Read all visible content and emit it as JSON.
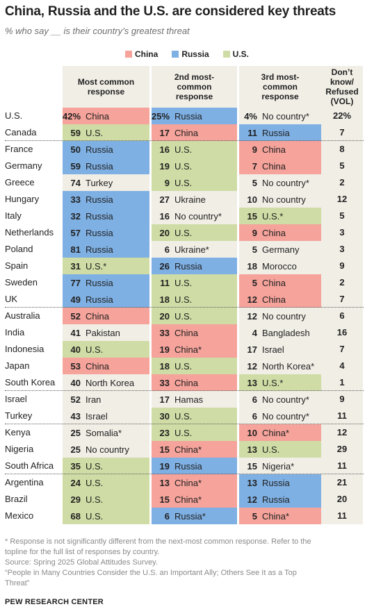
{
  "title": "China, Russia and the U.S. are considered key threats",
  "subtitle": "% who say __ is their country’s greatest threat",
  "colors": {
    "China": "#f5a39b",
    "Russia": "#7fb0e3",
    "U.S.": "#cfdca5",
    "Other": "#efece2"
  },
  "legend": [
    {
      "label": "China",
      "key": "China"
    },
    {
      "label": "Russia",
      "key": "Russia"
    },
    {
      "label": "U.S.",
      "key": "U.S."
    }
  ],
  "chart_data": {
    "type": "table",
    "columns": [
      "Most common response",
      "2nd most-common response",
      "3rd most-common response",
      "Don’t know/ Refused (VOL)"
    ],
    "rows": [
      {
        "country": "U.S.",
        "group": 1,
        "c1": {
          "v": "42%",
          "t": "China",
          "k": "China"
        },
        "c2": {
          "v": "25%",
          "t": "Russia",
          "k": "Russia"
        },
        "c3": {
          "v": "4%",
          "t": "No country*",
          "k": "Other"
        },
        "dk": "22%"
      },
      {
        "country": "Canada",
        "group": 1,
        "c1": {
          "v": "59",
          "t": "U.S.",
          "k": "U.S."
        },
        "c2": {
          "v": "17",
          "t": "China",
          "k": "China"
        },
        "c3": {
          "v": "11",
          "t": "Russia",
          "k": "Russia"
        },
        "dk": "7"
      },
      {
        "country": "France",
        "group": 2,
        "c1": {
          "v": "50",
          "t": "Russia",
          "k": "Russia"
        },
        "c2": {
          "v": "16",
          "t": "U.S.",
          "k": "U.S."
        },
        "c3": {
          "v": "9",
          "t": "China",
          "k": "China"
        },
        "dk": "8"
      },
      {
        "country": "Germany",
        "group": 2,
        "c1": {
          "v": "59",
          "t": "Russia",
          "k": "Russia"
        },
        "c2": {
          "v": "19",
          "t": "U.S.",
          "k": "U.S."
        },
        "c3": {
          "v": "7",
          "t": "China",
          "k": "China"
        },
        "dk": "5"
      },
      {
        "country": "Greece",
        "group": 2,
        "c1": {
          "v": "74",
          "t": "Turkey",
          "k": "Other"
        },
        "c2": {
          "v": "9",
          "t": "U.S.",
          "k": "U.S."
        },
        "c3": {
          "v": "5",
          "t": "No country*",
          "k": "Other"
        },
        "dk": "2"
      },
      {
        "country": "Hungary",
        "group": 2,
        "c1": {
          "v": "33",
          "t": "Russia",
          "k": "Russia"
        },
        "c2": {
          "v": "27",
          "t": "Ukraine",
          "k": "Other"
        },
        "c3": {
          "v": "10",
          "t": "No country",
          "k": "Other"
        },
        "dk": "12"
      },
      {
        "country": "Italy",
        "group": 2,
        "c1": {
          "v": "32",
          "t": "Russia",
          "k": "Russia"
        },
        "c2": {
          "v": "16",
          "t": "No country*",
          "k": "Other"
        },
        "c3": {
          "v": "15",
          "t": "U.S.*",
          "k": "U.S."
        },
        "dk": "5"
      },
      {
        "country": "Netherlands",
        "group": 2,
        "c1": {
          "v": "57",
          "t": "Russia",
          "k": "Russia"
        },
        "c2": {
          "v": "20",
          "t": "U.S.",
          "k": "U.S."
        },
        "c3": {
          "v": "9",
          "t": "China",
          "k": "China"
        },
        "dk": "3"
      },
      {
        "country": "Poland",
        "group": 2,
        "c1": {
          "v": "81",
          "t": "Russia",
          "k": "Russia"
        },
        "c2": {
          "v": "6",
          "t": "Ukraine*",
          "k": "Other"
        },
        "c3": {
          "v": "5",
          "t": "Germany",
          "k": "Other"
        },
        "dk": "3"
      },
      {
        "country": "Spain",
        "group": 2,
        "c1": {
          "v": "31",
          "t": "U.S.*",
          "k": "U.S."
        },
        "c2": {
          "v": "26",
          "t": "Russia",
          "k": "Russia"
        },
        "c3": {
          "v": "18",
          "t": "Morocco",
          "k": "Other"
        },
        "dk": "9"
      },
      {
        "country": "Sweden",
        "group": 2,
        "c1": {
          "v": "77",
          "t": "Russia",
          "k": "Russia"
        },
        "c2": {
          "v": "11",
          "t": "U.S.",
          "k": "U.S."
        },
        "c3": {
          "v": "5",
          "t": "China",
          "k": "China"
        },
        "dk": "2"
      },
      {
        "country": "UK",
        "group": 2,
        "c1": {
          "v": "49",
          "t": "Russia",
          "k": "Russia"
        },
        "c2": {
          "v": "18",
          "t": "U.S.",
          "k": "U.S."
        },
        "c3": {
          "v": "12",
          "t": "China",
          "k": "China"
        },
        "dk": "7"
      },
      {
        "country": "Australia",
        "group": 3,
        "c1": {
          "v": "52",
          "t": "China",
          "k": "China"
        },
        "c2": {
          "v": "20",
          "t": "U.S.",
          "k": "U.S."
        },
        "c3": {
          "v": "12",
          "t": "No country",
          "k": "Other"
        },
        "dk": "6"
      },
      {
        "country": "India",
        "group": 3,
        "c1": {
          "v": "41",
          "t": "Pakistan",
          "k": "Other"
        },
        "c2": {
          "v": "33",
          "t": "China",
          "k": "China"
        },
        "c3": {
          "v": "4",
          "t": "Bangladesh",
          "k": "Other"
        },
        "dk": "16"
      },
      {
        "country": "Indonesia",
        "group": 3,
        "c1": {
          "v": "40",
          "t": "U.S.",
          "k": "U.S."
        },
        "c2": {
          "v": "19",
          "t": "China*",
          "k": "China"
        },
        "c3": {
          "v": "17",
          "t": "Israel",
          "k": "Other"
        },
        "dk": "7"
      },
      {
        "country": "Japan",
        "group": 3,
        "c1": {
          "v": "53",
          "t": "China",
          "k": "China"
        },
        "c2": {
          "v": "18",
          "t": "U.S.",
          "k": "U.S."
        },
        "c3": {
          "v": "12",
          "t": "North Korea*",
          "k": "Other"
        },
        "dk": "4"
      },
      {
        "country": "South Korea",
        "group": 3,
        "c1": {
          "v": "40",
          "t": "North Korea",
          "k": "Other"
        },
        "c2": {
          "v": "33",
          "t": "China",
          "k": "China"
        },
        "c3": {
          "v": "13",
          "t": "U.S.*",
          "k": "U.S."
        },
        "dk": "1"
      },
      {
        "country": "Israel",
        "group": 4,
        "c1": {
          "v": "52",
          "t": "Iran",
          "k": "Other"
        },
        "c2": {
          "v": "17",
          "t": "Hamas",
          "k": "Other"
        },
        "c3": {
          "v": "6",
          "t": "No country*",
          "k": "Other"
        },
        "dk": "9"
      },
      {
        "country": "Turkey",
        "group": 4,
        "c1": {
          "v": "43",
          "t": "Israel",
          "k": "Other"
        },
        "c2": {
          "v": "30",
          "t": "U.S.",
          "k": "U.S."
        },
        "c3": {
          "v": "6",
          "t": "No country*",
          "k": "Other"
        },
        "dk": "11"
      },
      {
        "country": "Kenya",
        "group": 5,
        "c1": {
          "v": "25",
          "t": "Somalia*",
          "k": "Other"
        },
        "c2": {
          "v": "23",
          "t": "U.S.",
          "k": "U.S."
        },
        "c3": {
          "v": "10",
          "t": "China*",
          "k": "China"
        },
        "dk": "12"
      },
      {
        "country": "Nigeria",
        "group": 5,
        "c1": {
          "v": "25",
          "t": "No country",
          "k": "Other"
        },
        "c2": {
          "v": "15",
          "t": "China*",
          "k": "China"
        },
        "c3": {
          "v": "13",
          "t": "U.S.",
          "k": "U.S."
        },
        "dk": "29"
      },
      {
        "country": "South Africa",
        "group": 5,
        "c1": {
          "v": "35",
          "t": "U.S.",
          "k": "U.S."
        },
        "c2": {
          "v": "19",
          "t": "Russia",
          "k": "Russia"
        },
        "c3": {
          "v": "15",
          "t": "Nigeria*",
          "k": "Other"
        },
        "dk": "11"
      },
      {
        "country": "Argentina",
        "group": 6,
        "c1": {
          "v": "24",
          "t": "U.S.",
          "k": "U.S."
        },
        "c2": {
          "v": "13",
          "t": "China*",
          "k": "China"
        },
        "c3": {
          "v": "13",
          "t": "Russia",
          "k": "Russia"
        },
        "dk": "21"
      },
      {
        "country": "Brazil",
        "group": 6,
        "c1": {
          "v": "29",
          "t": "U.S.",
          "k": "U.S."
        },
        "c2": {
          "v": "15",
          "t": "China*",
          "k": "China"
        },
        "c3": {
          "v": "12",
          "t": "Russia",
          "k": "Russia"
        },
        "dk": "20"
      },
      {
        "country": "Mexico",
        "group": 6,
        "c1": {
          "v": "68",
          "t": "U.S.",
          "k": "U.S."
        },
        "c2": {
          "v": "6",
          "t": "Russia*",
          "k": "Russia"
        },
        "c3": {
          "v": "5",
          "t": "China*",
          "k": "China"
        },
        "dk": "11"
      }
    ]
  },
  "footnotes": [
    "* Response is not significantly different from the next-most common response. Refer to the",
    "topline for the full list of responses by country.",
    "Source: Spring 2025 Global Attitudes Survey.",
    "“People in Many Countries Consider the U.S. an Important Ally; Others See It as a Top",
    "Threat”"
  ],
  "brand": "PEW RESEARCH CENTER"
}
